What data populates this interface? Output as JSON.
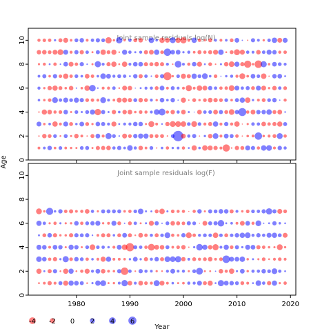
{
  "chart_data": [
    {
      "type": "scatter",
      "subtype": "bubble-residuals",
      "title": "Joint sample residuals log(N)",
      "xlabel": "",
      "ylabel": "Age",
      "xlim": [
        1971,
        2021
      ],
      "ylim": [
        0,
        11
      ],
      "x_range": [
        1973,
        2019
      ],
      "y_values": [
        1,
        2,
        3,
        4,
        5,
        6,
        7,
        8,
        9,
        10
      ],
      "xticks": [
        1980,
        1990,
        2000,
        2010,
        2020
      ],
      "xtick_labels_shown": false,
      "yticks": [
        0,
        2,
        4,
        6,
        8,
        10
      ],
      "grid": false
    },
    {
      "type": "scatter",
      "subtype": "bubble-residuals",
      "title": "Joint sample residuals log(F)",
      "xlabel": "Year",
      "ylabel": "Age",
      "xlim": [
        1971,
        2021
      ],
      "ylim": [
        0,
        11
      ],
      "x_range": [
        1973,
        2019
      ],
      "y_values": [
        1,
        2,
        3,
        4,
        5,
        6,
        7
      ],
      "xticks": [
        1980,
        1990,
        2000,
        2010,
        2020
      ],
      "xtick_labels_shown": true,
      "yticks": [
        0,
        2,
        4,
        6,
        8,
        10
      ],
      "grid": false
    }
  ],
  "shared": {
    "ylabel": "Age",
    "xlabel": "Year",
    "colors": {
      "positive": "#0000ff",
      "negative": "#ff0000",
      "alpha": 0.5
    }
  },
  "legend": {
    "placement": "bottom-left",
    "entries": [
      {
        "value": -4,
        "label": "-4"
      },
      {
        "value": -2,
        "label": "-2"
      },
      {
        "value": 0,
        "label": "0"
      },
      {
        "value": 2,
        "label": "2"
      },
      {
        "value": 4,
        "label": "4"
      },
      {
        "value": 6,
        "label": "6"
      }
    ]
  }
}
